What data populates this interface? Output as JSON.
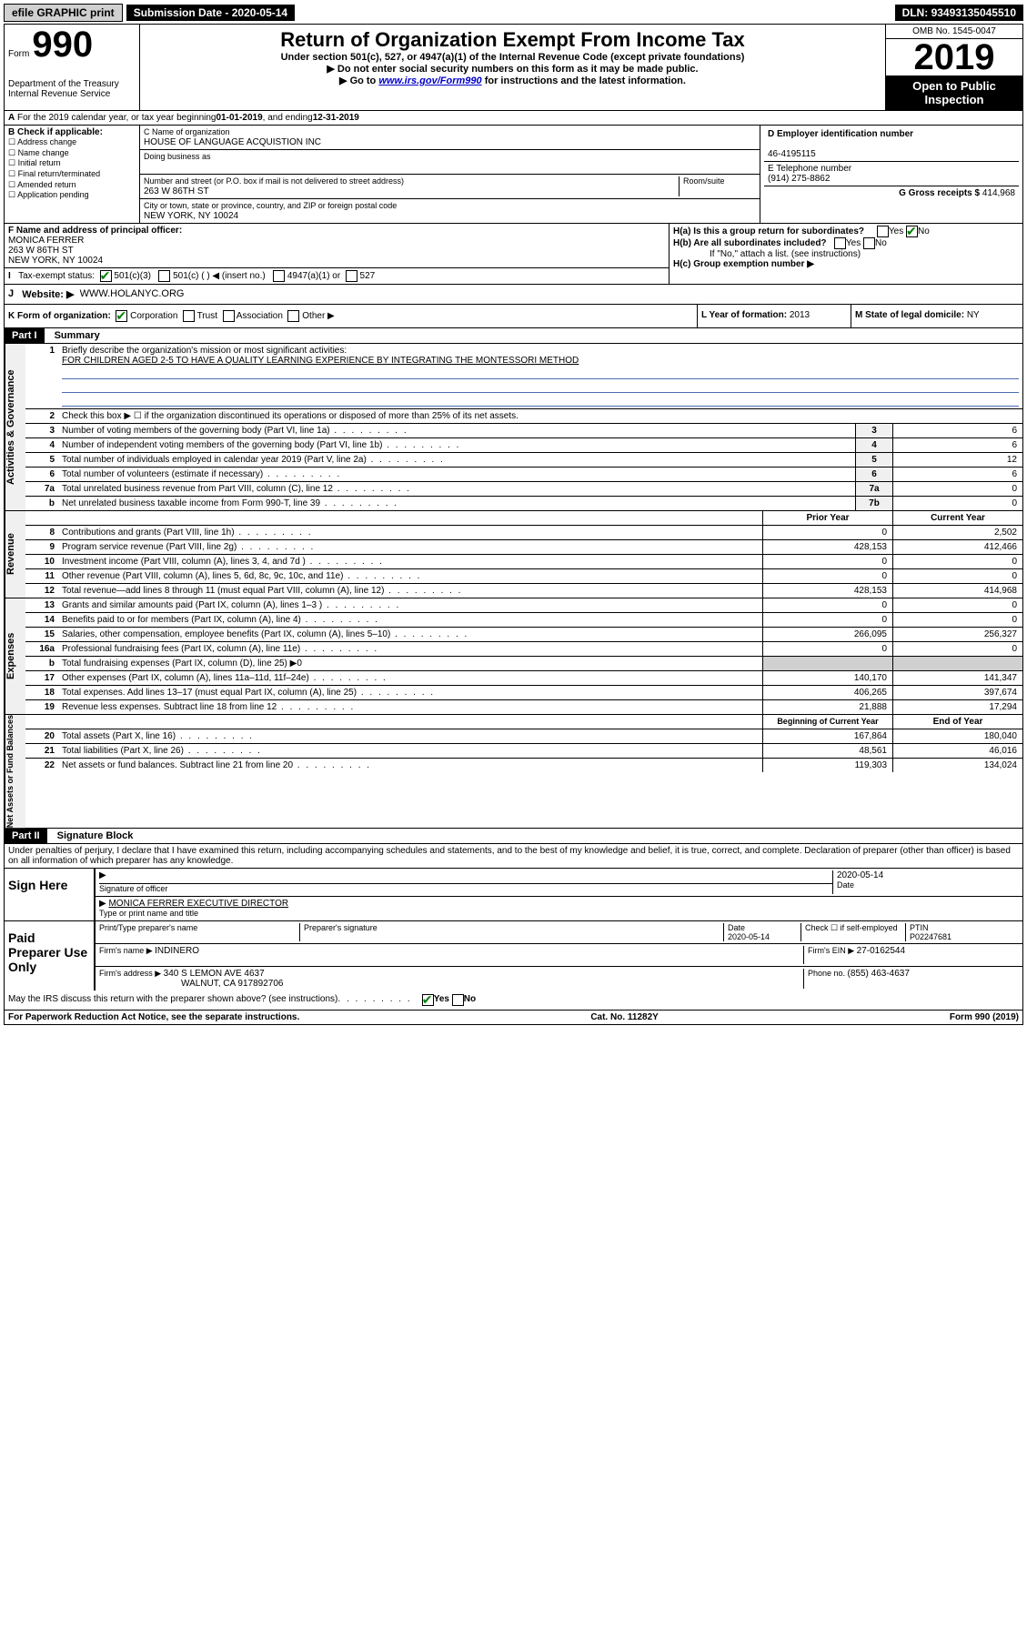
{
  "topbar": {
    "efile": "efile GRAPHIC print",
    "subdate_label": "Submission Date - ",
    "subdate": "2020-05-14",
    "dln_label": "DLN: ",
    "dln": "93493135045510"
  },
  "header": {
    "form_label": "Form",
    "form_num": "990",
    "dept": "Department of the Treasury\nInternal Revenue Service",
    "title": "Return of Organization Exempt From Income Tax",
    "sub1": "Under section 501(c), 527, or 4947(a)(1) of the Internal Revenue Code (except private foundations)",
    "sub2": "▶ Do not enter social security numbers on this form as it may be made public.",
    "sub3_pre": "▶ Go to ",
    "sub3_link": "www.irs.gov/Form990",
    "sub3_post": " for instructions and the latest information.",
    "omb": "OMB No. 1545-0047",
    "year": "2019",
    "open": "Open to Public Inspection"
  },
  "a_line": {
    "text": "For the 2019 calendar year, or tax year beginning ",
    "begin": "01-01-2019",
    "mid": " , and ending ",
    "end": "12-31-2019"
  },
  "b": {
    "label": "B Check if applicable:",
    "items": [
      "Address change",
      "Name change",
      "Initial return",
      "Final return/terminated",
      "Amended return",
      "Application pending"
    ]
  },
  "c": {
    "name_label": "C Name of organization",
    "name": "HOUSE OF LANGUAGE ACQUISTION INC",
    "dba_label": "Doing business as",
    "dba": "",
    "addr_label": "Number and street (or P.O. box if mail is not delivered to street address)",
    "room_label": "Room/suite",
    "addr": "263 W 86TH ST",
    "city_label": "City or town, state or province, country, and ZIP or foreign postal code",
    "city": "NEW YORK, NY  10024"
  },
  "d": {
    "label": "D Employer identification number",
    "value": "46-4195115"
  },
  "e": {
    "label": "E Telephone number",
    "value": "(914) 275-8862"
  },
  "g": {
    "label": "G Gross receipts $ ",
    "value": "414,968"
  },
  "f": {
    "label": "F  Name and address of principal officer:",
    "name": "MONICA FERRER",
    "addr1": "263 W 86TH ST",
    "addr2": "NEW YORK, NY  10024"
  },
  "h": {
    "a": "H(a)  Is this a group return for subordinates?",
    "b": "H(b)  Are all subordinates included?",
    "b_note": "If \"No,\" attach a list. (see instructions)",
    "c": "H(c)  Group exemption number ▶"
  },
  "i": {
    "label": "Tax-exempt status:",
    "opt1": "501(c)(3)",
    "opt2": "501(c) (   ) ◀ (insert no.)",
    "opt3": "4947(a)(1) or",
    "opt4": "527"
  },
  "j": {
    "label": "Website: ▶",
    "value": "WWW.HOLANYC.ORG"
  },
  "k": {
    "label": "K Form of organization:",
    "opts": [
      "Corporation",
      "Trust",
      "Association",
      "Other ▶"
    ]
  },
  "l": {
    "label": "L Year of formation: ",
    "value": "2013"
  },
  "m": {
    "label": "M State of legal domicile: ",
    "value": "NY"
  },
  "part1": {
    "header": "Part I",
    "title": "Summary",
    "q1_label": "Briefly describe the organization's mission or most significant activities:",
    "q1_text": "FOR CHILDREN AGED 2-5 TO HAVE A QUALITY LEARNING EXPERIENCE BY INTEGRATING THE MONTESSORI METHOD",
    "q2": "Check this box ▶ ☐ if the organization discontinued its operations or disposed of more than 25% of its net assets.",
    "lines_gov": [
      {
        "n": "3",
        "d": "Number of voting members of the governing body (Part VI, line 1a)",
        "box": "3",
        "v": "6"
      },
      {
        "n": "4",
        "d": "Number of independent voting members of the governing body (Part VI, line 1b)",
        "box": "4",
        "v": "6"
      },
      {
        "n": "5",
        "d": "Total number of individuals employed in calendar year 2019 (Part V, line 2a)",
        "box": "5",
        "v": "12"
      },
      {
        "n": "6",
        "d": "Total number of volunteers (estimate if necessary)",
        "box": "6",
        "v": "6"
      },
      {
        "n": "7a",
        "d": "Total unrelated business revenue from Part VIII, column (C), line 12",
        "box": "7a",
        "v": "0"
      },
      {
        "n": "b",
        "d": "Net unrelated business taxable income from Form 990-T, line 39",
        "box": "7b",
        "v": "0"
      }
    ],
    "col_prior": "Prior Year",
    "col_current": "Current Year",
    "lines_rev": [
      {
        "n": "8",
        "d": "Contributions and grants (Part VIII, line 1h)",
        "p": "0",
        "c": "2,502"
      },
      {
        "n": "9",
        "d": "Program service revenue (Part VIII, line 2g)",
        "p": "428,153",
        "c": "412,466"
      },
      {
        "n": "10",
        "d": "Investment income (Part VIII, column (A), lines 3, 4, and 7d )",
        "p": "0",
        "c": "0"
      },
      {
        "n": "11",
        "d": "Other revenue (Part VIII, column (A), lines 5, 6d, 8c, 9c, 10c, and 11e)",
        "p": "0",
        "c": "0"
      },
      {
        "n": "12",
        "d": "Total revenue—add lines 8 through 11 (must equal Part VIII, column (A), line 12)",
        "p": "428,153",
        "c": "414,968"
      }
    ],
    "lines_exp": [
      {
        "n": "13",
        "d": "Grants and similar amounts paid (Part IX, column (A), lines 1–3 )",
        "p": "0",
        "c": "0"
      },
      {
        "n": "14",
        "d": "Benefits paid to or for members (Part IX, column (A), line 4)",
        "p": "0",
        "c": "0"
      },
      {
        "n": "15",
        "d": "Salaries, other compensation, employee benefits (Part IX, column (A), lines 5–10)",
        "p": "266,095",
        "c": "256,327"
      },
      {
        "n": "16a",
        "d": "Professional fundraising fees (Part IX, column (A), line 11e)",
        "p": "0",
        "c": "0"
      },
      {
        "n": "b",
        "d": "Total fundraising expenses (Part IX, column (D), line 25) ▶0",
        "p": "",
        "c": "",
        "shaded": true
      },
      {
        "n": "17",
        "d": "Other expenses (Part IX, column (A), lines 11a–11d, 11f–24e)",
        "p": "140,170",
        "c": "141,347"
      },
      {
        "n": "18",
        "d": "Total expenses. Add lines 13–17 (must equal Part IX, column (A), line 25)",
        "p": "406,265",
        "c": "397,674"
      },
      {
        "n": "19",
        "d": "Revenue less expenses. Subtract line 18 from line 12",
        "p": "21,888",
        "c": "17,294"
      }
    ],
    "col_begin": "Beginning of Current Year",
    "col_end": "End of Year",
    "lines_net": [
      {
        "n": "20",
        "d": "Total assets (Part X, line 16)",
        "p": "167,864",
        "c": "180,040"
      },
      {
        "n": "21",
        "d": "Total liabilities (Part X, line 26)",
        "p": "48,561",
        "c": "46,016"
      },
      {
        "n": "22",
        "d": "Net assets or fund balances. Subtract line 21 from line 20",
        "p": "119,303",
        "c": "134,024"
      }
    ],
    "vlabels": {
      "gov": "Activities & Governance",
      "rev": "Revenue",
      "exp": "Expenses",
      "net": "Net Assets or Fund Balances"
    }
  },
  "part2": {
    "header": "Part II",
    "title": "Signature Block",
    "perjury": "Under penalties of perjury, I declare that I have examined this return, including accompanying schedules and statements, and to the best of my knowledge and belief, it is true, correct, and complete. Declaration of preparer (other than officer) is based on all information of which preparer has any knowledge.",
    "sign_here": "Sign Here",
    "sig_officer": "Signature of officer",
    "sig_date": "2020-05-14",
    "date_label": "Date",
    "sig_name": "MONICA FERRER  EXECUTIVE DIRECTOR",
    "sig_name_label": "Type or print name and title",
    "paid_preparer": "Paid Preparer Use Only",
    "prep_name_label": "Print/Type preparer's name",
    "prep_sig_label": "Preparer's signature",
    "prep_date": "2020-05-14",
    "prep_check": "Check ☐ if self-employed",
    "ptin_label": "PTIN",
    "ptin": "P02247681",
    "firm_label": "Firm's name    ▶ ",
    "firm": "INDINERO",
    "firm_ein_label": "Firm's EIN ▶ ",
    "firm_ein": "27-0162544",
    "firm_addr_label": "Firm's address ▶ ",
    "firm_addr": "340 S LEMON AVE 4637",
    "firm_city": "WALNUT, CA  917892706",
    "firm_phone_label": "Phone no. ",
    "firm_phone": "(855) 463-4637",
    "discuss": "May the IRS discuss this return with the preparer shown above? (see instructions)"
  },
  "footer": {
    "pra": "For Paperwork Reduction Act Notice, see the separate instructions.",
    "cat": "Cat. No. 11282Y",
    "form": "Form 990 (2019)"
  }
}
